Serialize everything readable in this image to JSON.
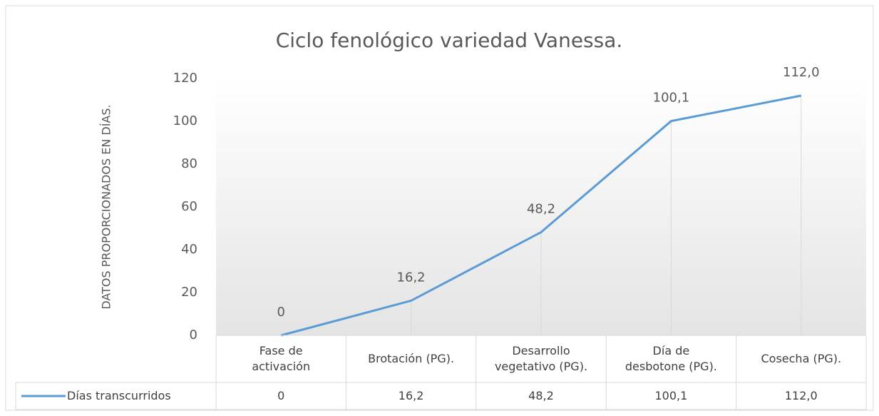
{
  "chart_data": {
    "type": "line",
    "title": "Ciclo fenológico variedad Vanessa.",
    "y_label": "DATOS PROPORCIONADOS EN DÍAS.",
    "categories": [
      "Fase de\nactivación",
      "Brotación (PG).",
      "Desarrollo\nvegetativo (PG).",
      "Día de\ndesbotone (PG).",
      "Cosecha (PG)."
    ],
    "series": [
      {
        "name": "Días transcurridos",
        "color": "#5b9bd5",
        "values": [
          0,
          16.2,
          48.2,
          100.1,
          112.0
        ],
        "value_labels": [
          "0",
          "16,2",
          "48,2",
          "100,1",
          "112,0"
        ]
      }
    ],
    "ylim": [
      0,
      120
    ],
    "yticks": [
      0,
      20,
      40,
      60,
      80,
      100,
      120
    ],
    "data_table": true,
    "drop_lines": true
  }
}
